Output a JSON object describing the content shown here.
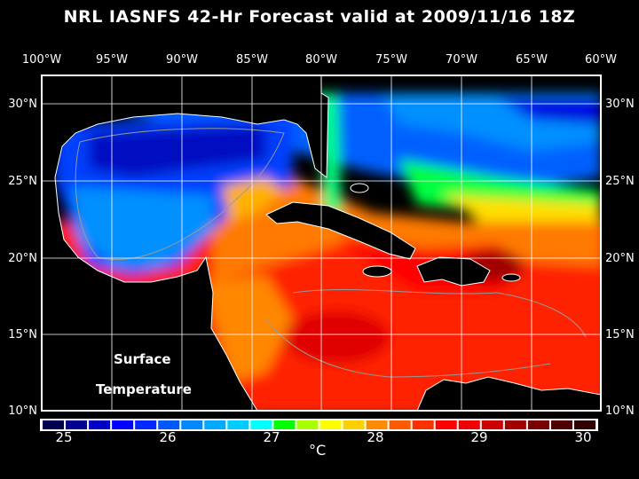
{
  "title": "NRL IASNFS  42-Hr Forecast valid at 2009/11/16 18Z",
  "lon_labels": [
    "100°W",
    "95°W",
    "90°W",
    "85°W",
    "80°W",
    "75°W",
    "70°W",
    "65°W",
    "60°W"
  ],
  "lat_labels": [
    "30°N",
    "25°N",
    "20°N",
    "15°N",
    "10°N"
  ],
  "overlay": {
    "line1": "Surface",
    "line2": "Temperature"
  },
  "colorbar": {
    "tick_labels": [
      "25",
      "26",
      "27",
      "28",
      "29",
      "30"
    ],
    "unit": "°C",
    "colors": [
      "#000050",
      "#000090",
      "#0000c8",
      "#0000ff",
      "#0028ff",
      "#0058ff",
      "#0088ff",
      "#00aaff",
      "#00ccff",
      "#00ffff",
      "#00ff00",
      "#a8ff00",
      "#ffff00",
      "#ffd000",
      "#ff8c00",
      "#ff5a00",
      "#ff3000",
      "#ff0000",
      "#f00000",
      "#cc0000",
      "#a00000",
      "#780000",
      "#500000",
      "#300000"
    ]
  }
}
